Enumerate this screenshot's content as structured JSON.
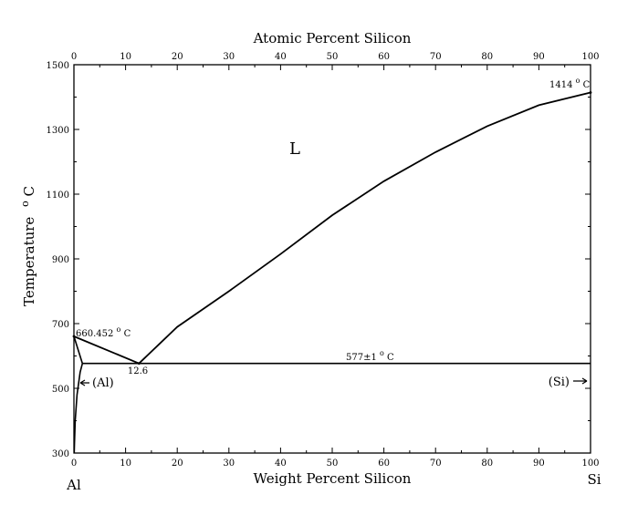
{
  "top_axis": {
    "title": "Atomic Percent Silicon",
    "ticks": [
      0,
      10,
      20,
      30,
      40,
      50,
      60,
      70,
      80,
      90,
      100
    ]
  },
  "bottom_axis": {
    "title": "Weight Percent Silicon",
    "ticks": [
      0,
      10,
      20,
      30,
      40,
      50,
      60,
      70,
      80,
      90,
      100
    ],
    "end_left": "Al",
    "end_right": "Si"
  },
  "left_axis": {
    "title": "Temperature",
    "unit_label": "oC",
    "unit_super": "o",
    "unit_base": "C",
    "ticks": [
      300,
      500,
      700,
      900,
      1100,
      1300,
      1500
    ]
  },
  "labels": {
    "liquid": "L",
    "al_melting": "660.452",
    "al_melting_unit_super": "o",
    "al_melting_unit_base": "C",
    "si_melting": "1414",
    "si_melting_unit_super": "o",
    "si_melting_unit_base": "C",
    "eutectic_temp": "577±1",
    "eutectic_temp_unit_super": "o",
    "eutectic_temp_unit_base": "C",
    "eutectic_comp": "12.6",
    "al_phase": "(Al)",
    "si_phase": "(Si)"
  },
  "chart_data": {
    "type": "line",
    "x_range": [
      0,
      100
    ],
    "y_range": [
      300,
      1500
    ],
    "al_melting_point": {
      "x": 0,
      "y": 660.452
    },
    "si_melting_point": {
      "x": 100,
      "y": 1414
    },
    "eutectic_point": {
      "x": 12.6,
      "y": 577
    },
    "liquidus": [
      {
        "x": 0,
        "y": 660.452
      },
      {
        "x": 12.6,
        "y": 577
      },
      {
        "x": 20,
        "y": 690
      },
      {
        "x": 30,
        "y": 800
      },
      {
        "x": 40,
        "y": 915
      },
      {
        "x": 50,
        "y": 1035
      },
      {
        "x": 60,
        "y": 1140
      },
      {
        "x": 70,
        "y": 1230
      },
      {
        "x": 80,
        "y": 1310
      },
      {
        "x": 90,
        "y": 1375
      },
      {
        "x": 100,
        "y": 1414
      }
    ],
    "eutectic_line": [
      {
        "x": 1.65,
        "y": 577
      },
      {
        "x": 100,
        "y": 577
      }
    ],
    "al_solidus": [
      {
        "x": 0,
        "y": 660.452
      },
      {
        "x": 1.65,
        "y": 577
      }
    ],
    "al_solvus": [
      {
        "x": 1.65,
        "y": 577
      },
      {
        "x": 1.2,
        "y": 550
      },
      {
        "x": 0.6,
        "y": 480
      },
      {
        "x": 0.25,
        "y": 400
      },
      {
        "x": 0.1,
        "y": 330
      },
      {
        "x": 0.05,
        "y": 300
      }
    ]
  }
}
